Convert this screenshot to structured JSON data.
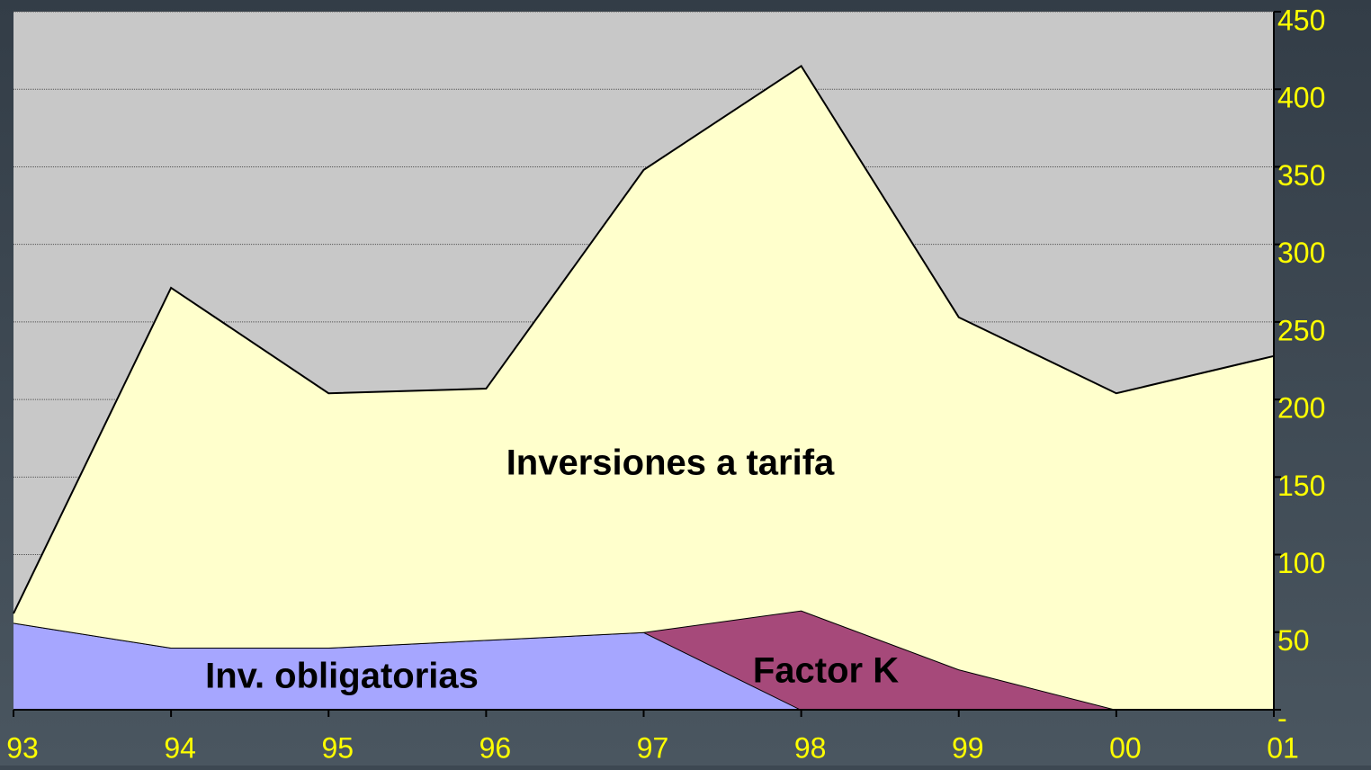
{
  "chart_data": {
    "type": "stacked-area",
    "categories": [
      "93",
      "94",
      "95",
      "96",
      "97",
      "98",
      "99",
      "00",
      "01"
    ],
    "series": [
      {
        "name": "Inv. obligatorias",
        "color": "#a6a6ff",
        "values": [
          56,
          40,
          40,
          45,
          50,
          0,
          0,
          0,
          0
        ]
      },
      {
        "name": "Factor K",
        "color": "#a6497a",
        "values": [
          0,
          0,
          0,
          0,
          0,
          64,
          26,
          0,
          0
        ]
      },
      {
        "name": "Inversiones a tarifa",
        "color": "#ffffcc",
        "values": [
          6,
          232,
          164,
          162,
          298,
          351,
          227,
          204,
          228
        ]
      }
    ],
    "ylim": [
      0,
      450
    ],
    "yticks": [
      {
        "value": 0,
        "label": "-"
      },
      50,
      100,
      150,
      200,
      250,
      300,
      350,
      400,
      450
    ],
    "grid": true,
    "plot_background": "#c8c8c8",
    "tick_color": "#ffff00"
  }
}
